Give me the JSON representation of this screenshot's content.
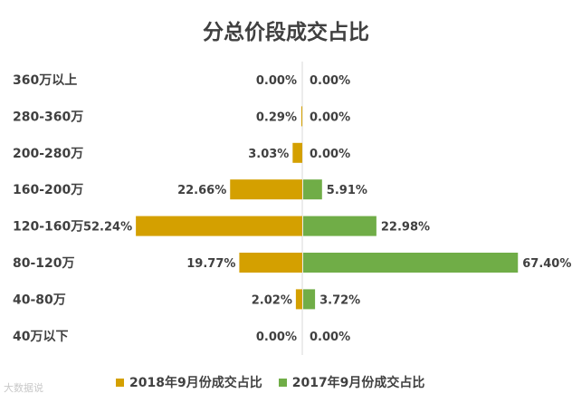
{
  "chart_data": {
    "type": "bar",
    "orientation": "horizontal-diverging",
    "title": "分总价段成交占比",
    "categories": [
      "360万以上",
      "280-360万",
      "200-280万",
      "160-200万",
      "120-160万",
      "80-120万",
      "40-80万",
      "40万以下"
    ],
    "series": [
      {
        "name": "2018年9月份成交占比",
        "color": "#d4a000",
        "values": [
          0.0,
          0.29,
          3.03,
          22.66,
          52.24,
          19.77,
          2.02,
          0.0
        ],
        "labels": [
          "0.00%",
          "0.29%",
          "3.03%",
          "22.66%",
          "52.24%",
          "19.77%",
          "2.02%",
          "0.00%"
        ]
      },
      {
        "name": "2017年9月份成交占比",
        "color": "#70ad47",
        "values": [
          0.0,
          0.0,
          0.0,
          5.91,
          22.98,
          67.4,
          3.72,
          0.0
        ],
        "labels": [
          "0.00%",
          "0.00%",
          "0.00%",
          "5.91%",
          "22.98%",
          "67.40%",
          "3.72%",
          "0.00%"
        ]
      }
    ],
    "legend_position": "bottom",
    "grid": false
  },
  "watermark": "大数据说"
}
